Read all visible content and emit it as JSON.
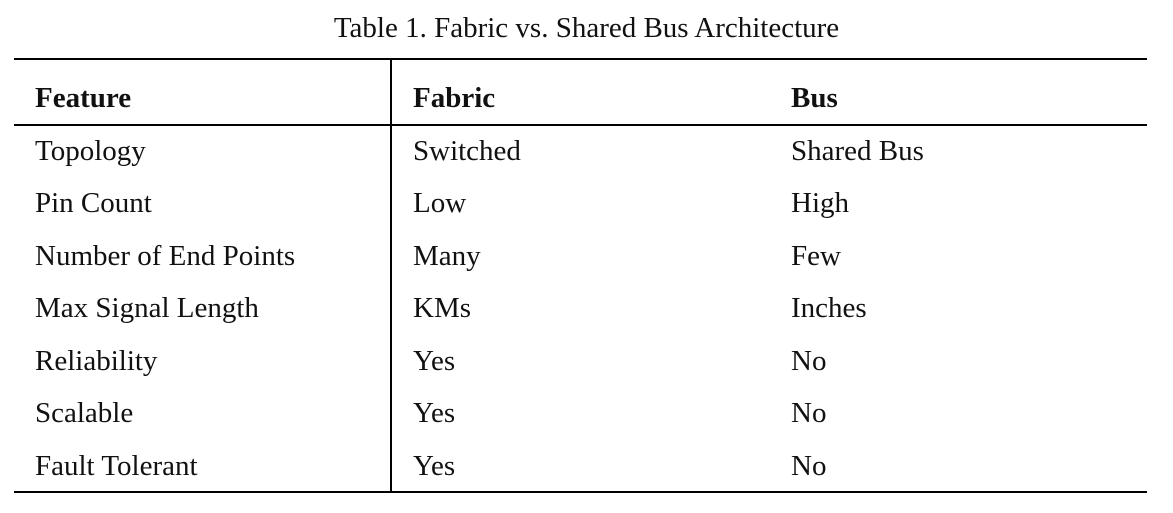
{
  "caption": "Table 1. Fabric vs. Shared Bus Architecture",
  "table": {
    "headers": [
      "Feature",
      "Fabric",
      "Bus"
    ],
    "rows": [
      [
        "Topology",
        "Switched",
        "Shared Bus"
      ],
      [
        "Pin Count",
        "Low",
        "High"
      ],
      [
        "Number of End Points",
        "Many",
        "Few"
      ],
      [
        "Max Signal Length",
        "KMs",
        "Inches"
      ],
      [
        "Reliability",
        "Yes",
        "No"
      ],
      [
        "Scalable",
        "Yes",
        "No"
      ],
      [
        "Fault Tolerant",
        "Yes",
        "No"
      ]
    ]
  }
}
